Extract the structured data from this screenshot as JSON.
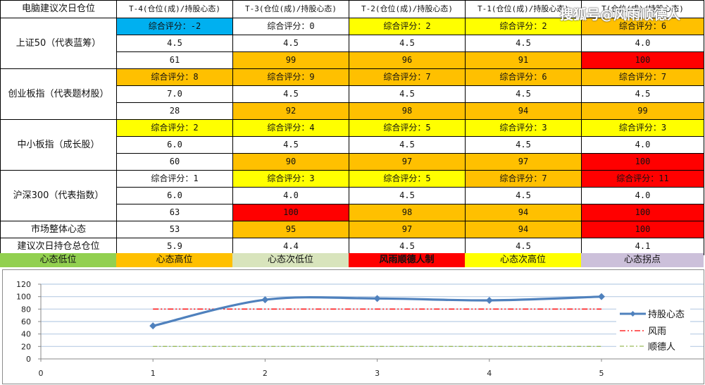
{
  "table": {
    "corner_label": "电脑建议次日仓位",
    "columns": [
      "T-4(仓位(成)/持股心态)",
      "T-3(仓位(成)/持股心态)",
      "T-2(仓位(成)/持股心态)",
      "T-1(仓位(成)/持股心态)",
      "T(仓位(成)/持股心态)"
    ],
    "groups": [
      {
        "label": "上证50（代表蓝筹）",
        "score": [
          "综合评分：-2",
          "综合评分：0",
          "综合评分：2",
          "综合评分：2",
          "综合评分：6"
        ],
        "score_colors": [
          "#00b0f0",
          "#ffffff",
          "#ffff00",
          "#ffff00",
          "#ffc000"
        ],
        "position": [
          "4.5",
          "4.5",
          "4.5",
          "4.5",
          "4.0"
        ],
        "sentiment": [
          "61",
          "99",
          "96",
          "91",
          "100"
        ],
        "sentiment_colors": [
          "#ffffff",
          "#ffc000",
          "#ffc000",
          "#ffc000",
          "#ff0000"
        ]
      },
      {
        "label": "创业板指（代表题材股）",
        "score": [
          "综合评分：8",
          "综合评分：9",
          "综合评分：7",
          "综合评分：6",
          "综合评分：7"
        ],
        "score_colors": [
          "#ffc000",
          "#ffc000",
          "#ffc000",
          "#ffc000",
          "#ffc000"
        ],
        "position": [
          "7.0",
          "4.5",
          "4.5",
          "4.5",
          "4.5"
        ],
        "sentiment": [
          "28",
          "92",
          "98",
          "94",
          "99"
        ],
        "sentiment_colors": [
          "#ffffff",
          "#ffc000",
          "#ffc000",
          "#ffc000",
          "#ffc000"
        ]
      },
      {
        "label": "中小板指（成长股）",
        "score": [
          "综合评分：2",
          "综合评分：4",
          "综合评分：5",
          "综合评分：3",
          "综合评分：3"
        ],
        "score_colors": [
          "#ffff00",
          "#ffff00",
          "#ffff00",
          "#ffff00",
          "#ffff00"
        ],
        "position": [
          "6.0",
          "4.5",
          "4.5",
          "4.5",
          "4.0"
        ],
        "sentiment": [
          "60",
          "90",
          "97",
          "97",
          "100"
        ],
        "sentiment_colors": [
          "#ffffff",
          "#ffc000",
          "#ffc000",
          "#ffc000",
          "#ff0000"
        ]
      },
      {
        "label": "沪深300（代表指数）",
        "score": [
          "综合评分：1",
          "综合评分：3",
          "综合评分：5",
          "综合评分：7",
          "综合评分：11"
        ],
        "score_colors": [
          "#ffffff",
          "#ffff00",
          "#ffff00",
          "#ffc000",
          "#ff0000"
        ],
        "position": [
          "6.0",
          "4.0",
          "4.5",
          "4.5",
          "4.0"
        ],
        "sentiment": [
          "63",
          "100",
          "98",
          "94",
          "100"
        ],
        "sentiment_colors": [
          "#ffffff",
          "#ff0000",
          "#ffc000",
          "#ffc000",
          "#ff0000"
        ]
      }
    ],
    "market_row": {
      "label": "市场整体心态",
      "values": [
        "53",
        "95",
        "97",
        "94",
        "100"
      ],
      "colors": [
        "#ffffff",
        "#ffc000",
        "#ffc000",
        "#ffc000",
        "#ff0000"
      ]
    },
    "position_row": {
      "label": "建议次日持仓总仓位",
      "values": [
        "5.9",
        "4.4",
        "4.5",
        "4.5",
        "4.1"
      ]
    }
  },
  "color_legend": [
    {
      "label": "心态低位",
      "color": "#92d050"
    },
    {
      "label": "心态高位",
      "color": "#ffc000"
    },
    {
      "label": "心态次低位",
      "color": "#d8e4bc"
    },
    {
      "label": "风雨顺德人制",
      "color": "#ff0000"
    },
    {
      "label": "心态次高位",
      "color": "#ffff00"
    },
    {
      "label": "心态拐点",
      "color": "#ccc0da"
    }
  ],
  "watermark": "搜狐号@风雨顺德人",
  "chart_data": {
    "type": "line",
    "title": "",
    "xlabel": "",
    "ylabel": "",
    "x": [
      1,
      2,
      3,
      4,
      5
    ],
    "x_ticks": [
      "0",
      "1",
      "2",
      "3",
      "4",
      "5"
    ],
    "y_ticks": [
      "0",
      "20",
      "40",
      "60",
      "80",
      "100",
      "120"
    ],
    "xlim": [
      0,
      6
    ],
    "ylim": [
      0,
      120
    ],
    "grid": true,
    "legend_position": "right",
    "series": [
      {
        "name": "持股心态",
        "values": [
          53,
          95,
          97,
          94,
          100
        ],
        "color": "#4f81bd",
        "style": "solid-smooth-diamond"
      },
      {
        "name": "风雨",
        "values": [
          80,
          80,
          80,
          80,
          80
        ],
        "color": "#ff0000",
        "style": "dash-dot-dot"
      },
      {
        "name": "顺德人",
        "values": [
          20,
          20,
          20,
          20,
          20
        ],
        "color": "#9bbb59",
        "style": "dash-dot"
      }
    ]
  }
}
